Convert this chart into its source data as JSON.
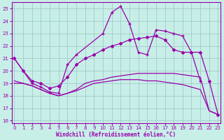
{
  "xlabel": "Windchill (Refroidissement éolien,°C)",
  "bg_color": "#c8eee8",
  "grid_color": "#a0ccc8",
  "line_color": "#9900aa",
  "xlim": [
    -0.3,
    23.3
  ],
  "ylim": [
    15.8,
    25.5
  ],
  "yticks": [
    16,
    17,
    18,
    19,
    20,
    21,
    22,
    23,
    24,
    25
  ],
  "xticks": [
    0,
    1,
    2,
    3,
    4,
    5,
    6,
    7,
    8,
    9,
    10,
    11,
    12,
    13,
    14,
    15,
    16,
    17,
    18,
    19,
    20,
    21,
    22,
    23
  ],
  "line1_x": [
    0,
    1,
    2,
    3,
    4,
    5,
    6,
    7,
    10,
    11,
    12,
    13,
    14,
    15,
    16,
    17,
    18,
    19,
    20,
    21
  ],
  "line1_y": [
    21.0,
    20.0,
    19.0,
    18.7,
    18.3,
    18.2,
    20.5,
    21.3,
    23.0,
    24.7,
    25.2,
    23.8,
    21.5,
    21.3,
    23.3,
    23.2,
    23.0,
    22.8,
    21.5,
    19.2
  ],
  "line2_x": [
    0,
    1,
    2,
    3,
    4,
    5,
    6,
    7,
    8,
    9,
    10,
    11,
    12,
    13,
    14,
    15,
    16,
    17,
    18,
    19,
    20,
    21,
    22,
    23
  ],
  "line2_y": [
    21.0,
    20.0,
    19.2,
    19.0,
    18.6,
    18.8,
    19.5,
    20.5,
    21.0,
    21.3,
    21.7,
    22.0,
    22.2,
    22.5,
    22.6,
    22.7,
    22.8,
    22.5,
    21.7,
    21.5,
    21.5,
    21.5,
    19.2,
    16.5
  ],
  "line3_x": [
    0,
    1,
    2,
    3,
    4,
    5,
    6,
    7,
    8,
    9,
    10,
    11,
    12,
    13,
    14,
    15,
    16,
    17,
    18,
    19,
    20,
    21,
    22,
    23
  ],
  "line3_y": [
    19.2,
    19.0,
    18.8,
    18.5,
    18.2,
    18.0,
    18.2,
    18.5,
    19.0,
    19.2,
    19.3,
    19.5,
    19.6,
    19.7,
    19.8,
    19.8,
    19.8,
    19.8,
    19.8,
    19.7,
    19.6,
    19.5,
    16.8,
    16.5
  ],
  "line4_x": [
    0,
    1,
    2,
    3,
    4,
    5,
    6,
    7,
    8,
    9,
    10,
    11,
    12,
    13,
    14,
    15,
    16,
    17,
    18,
    19,
    20,
    21,
    22,
    23
  ],
  "line4_y": [
    19.0,
    19.0,
    18.8,
    18.5,
    18.2,
    18.0,
    18.2,
    18.4,
    18.7,
    19.0,
    19.1,
    19.2,
    19.3,
    19.3,
    19.3,
    19.2,
    19.2,
    19.1,
    19.0,
    18.9,
    18.7,
    18.5,
    16.8,
    16.5
  ]
}
